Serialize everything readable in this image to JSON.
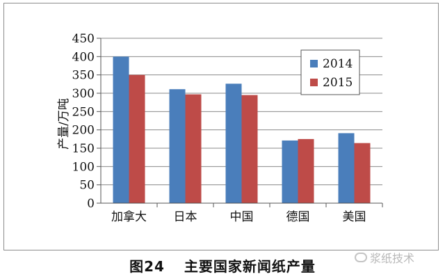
{
  "chart_data": {
    "type": "bar",
    "categories": [
      "加拿大",
      "日本",
      "中国",
      "德国",
      "美国"
    ],
    "series": [
      {
        "name": "2014",
        "values": [
          400,
          311,
          326,
          171,
          191
        ],
        "color": "#4a7ebb"
      },
      {
        "name": "2015",
        "values": [
          350,
          297,
          295,
          175,
          164
        ],
        "color": "#be4b48"
      }
    ],
    "ylabel": "产量/万吨",
    "ylim": [
      0,
      450
    ],
    "yticks": [
      0,
      50,
      100,
      150,
      200,
      250,
      300,
      350,
      400,
      450
    ],
    "grid": true,
    "legend_position": "top-right"
  },
  "caption": {
    "number": "图24",
    "title": "主要国家新闻纸产量"
  },
  "watermark": {
    "text": "浆纸技术"
  }
}
